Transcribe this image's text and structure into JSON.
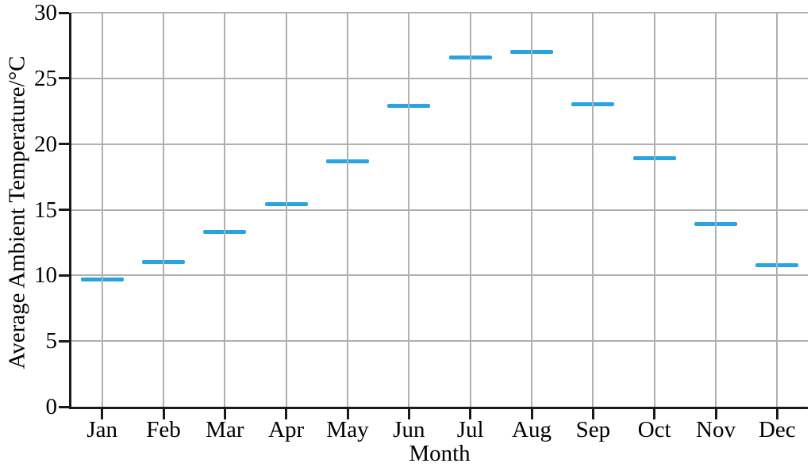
{
  "chart_data": {
    "type": "scatter",
    "marker": "horizontal-dash",
    "title": "",
    "xlabel": "Month",
    "ylabel": "Average Ambient Temperature/°C",
    "categories": [
      "Jan",
      "Feb",
      "Mar",
      "Apr",
      "May",
      "Jun",
      "Jul",
      "Aug",
      "Sep",
      "Oct",
      "Nov",
      "Dec"
    ],
    "values": [
      9.7,
      11.0,
      13.3,
      15.4,
      18.7,
      22.9,
      26.6,
      27.0,
      23.0,
      18.9,
      13.9,
      10.8
    ],
    "ylim": [
      0,
      30
    ],
    "yticks": [
      0,
      5,
      10,
      15,
      20,
      25,
      30
    ],
    "grid": true,
    "legend": "none",
    "colors": {
      "marker": "#29a4e2",
      "grid": "#b0b0b0",
      "axis": "#1a1a1a",
      "text": "#000000"
    }
  }
}
